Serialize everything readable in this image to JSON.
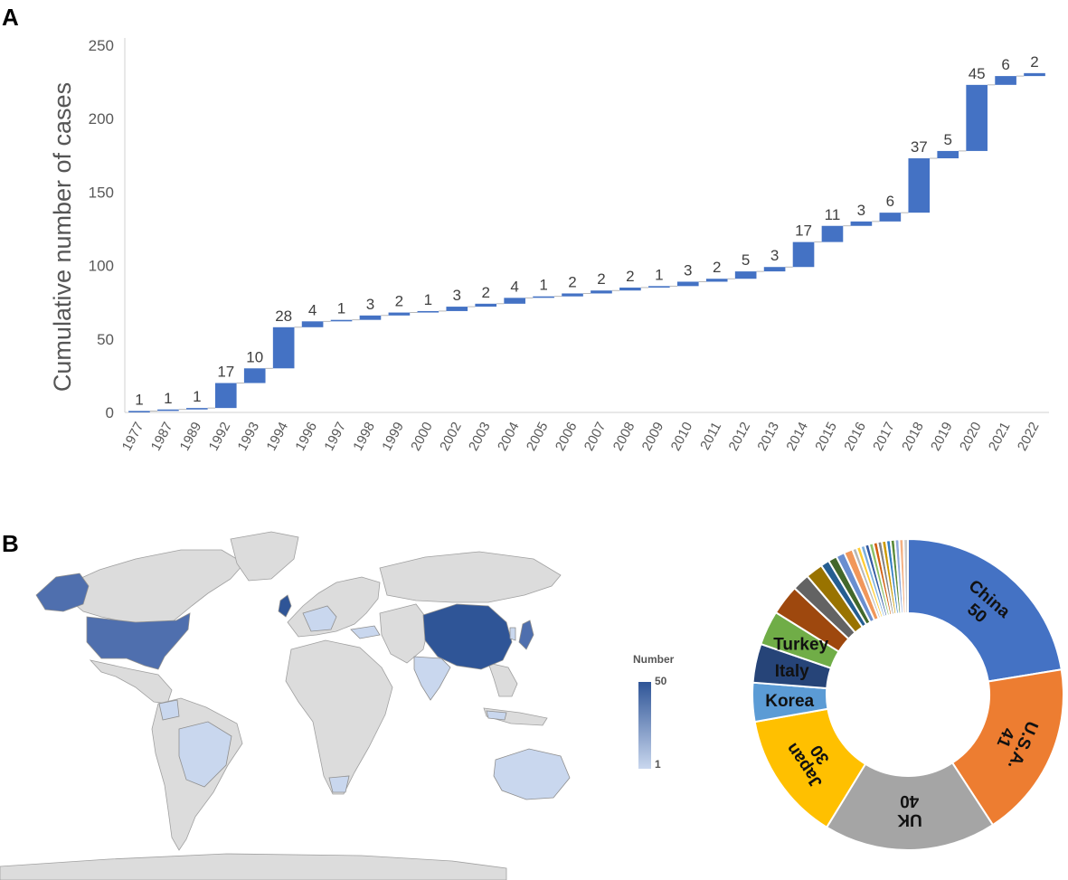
{
  "panels": {
    "a": "A",
    "b": "B"
  },
  "chart_data": [
    {
      "type": "bar",
      "subtype": "waterfall",
      "ylabel": "Cumulative number of cases",
      "xlabel": "",
      "ylim": [
        0,
        250
      ],
      "yticks": [
        0,
        50,
        100,
        150,
        200,
        250
      ],
      "grid": false,
      "categories": [
        "1977",
        "1987",
        "1989",
        "1992",
        "1993",
        "1994",
        "1996",
        "1997",
        "1998",
        "1999",
        "2000",
        "2002",
        "2003",
        "2004",
        "2005",
        "2006",
        "2007",
        "2008",
        "2009",
        "2010",
        "2011",
        "2012",
        "2013",
        "2014",
        "2015",
        "2016",
        "2017",
        "2018",
        "2019",
        "2020",
        "2021",
        "2022"
      ],
      "values": [
        1,
        1,
        1,
        17,
        10,
        28,
        4,
        1,
        3,
        2,
        1,
        3,
        2,
        4,
        1,
        2,
        2,
        2,
        1,
        3,
        2,
        5,
        3,
        17,
        11,
        3,
        6,
        37,
        5,
        45,
        6,
        2
      ],
      "color": "#4472c4"
    },
    {
      "type": "pie",
      "subtype": "donut",
      "labels": [
        "China",
        "U.S.A.",
        "UK",
        "Japan",
        "Korea",
        "Italy",
        "Turkey"
      ],
      "values": [
        50,
        41,
        40,
        30,
        9,
        9,
        8
      ],
      "colors": [
        "#4472c4",
        "#ed7d31",
        "#a5a5a5",
        "#ffc000",
        "#5b9bd5",
        "#264478",
        "#70ad47"
      ],
      "shown_values": [
        "50",
        "41",
        "40",
        "30"
      ],
      "minor_values": [
        7,
        4,
        4,
        2,
        2,
        2,
        2,
        1,
        1,
        1,
        1,
        1,
        1,
        1,
        1,
        1,
        1,
        1,
        1,
        1
      ],
      "minor_colors": [
        "#9e480e",
        "#636363",
        "#997300",
        "#255e91",
        "#43682b",
        "#698ed0",
        "#f1975a",
        "#b7b7b7",
        "#ffcd33",
        "#7cafdd",
        "#335aa1",
        "#8cc168",
        "#d26012",
        "#848484",
        "#cc9a00",
        "#327dc2",
        "#5a8a39",
        "#8faadc",
        "#f4b183",
        "#c9c9c9"
      ]
    }
  ],
  "map": {
    "legend_title": "Number",
    "legend_max": "50",
    "legend_min": "1",
    "colors": {
      "land": "#dcdcdc",
      "border": "#9a9a9a",
      "high": "#2f5597",
      "mid": "#4f6fae",
      "low": "#c9d7ee"
    }
  }
}
